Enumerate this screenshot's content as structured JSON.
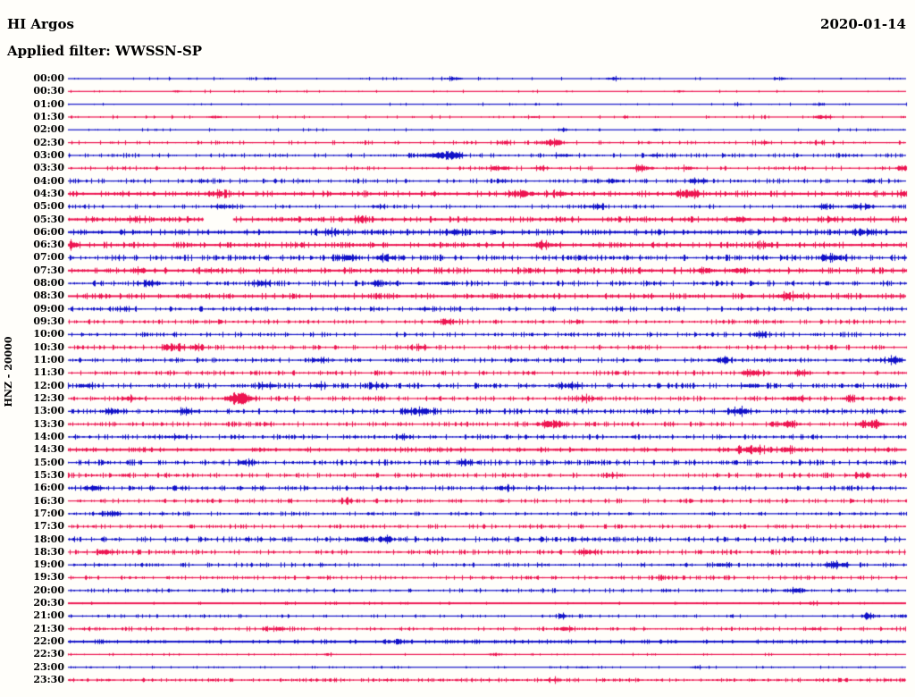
{
  "header": {
    "station": "HI Argos",
    "date": "2020-01-14",
    "filter": "Applied filter: WWSSN-SP"
  },
  "axis": {
    "channel_label": "HNZ - 20000"
  },
  "colors": {
    "trace_blue": "#1010c8",
    "trace_red": "#ed1450",
    "text": "#000000",
    "background": "#fffefa"
  },
  "chart_data": {
    "type": "line",
    "subtype": "helicorder-day-plot",
    "title": "HI Argos",
    "date_label": "2020-01-14",
    "filter_label": "Applied filter: WWSSN-SP",
    "ylabel": "HNZ - 20000",
    "minutes_per_row": 30,
    "row_count": 48,
    "legend": "alternating blue/red 30-minute traces, top=00:00 bottom=23:30",
    "rows": [
      {
        "t": "00:00",
        "n": 0.7,
        "d": 0.1,
        "ev": [
          [
            0.24,
            1.2,
            5
          ],
          [
            0.46,
            1.6,
            7
          ],
          [
            0.65,
            1.3,
            7
          ],
          [
            0.85,
            1.3,
            6
          ]
        ]
      },
      {
        "t": "00:30",
        "n": 0.6,
        "d": 0.08,
        "ev": [
          [
            0.13,
            1.2,
            4
          ],
          [
            0.73,
            1.2,
            4
          ]
        ]
      },
      {
        "t": "01:00",
        "n": 0.6,
        "d": 0.08,
        "ev": [
          [
            0.8,
            1.3,
            4
          ],
          [
            0.895,
            1.6,
            5
          ]
        ]
      },
      {
        "t": "01:30",
        "n": 0.7,
        "d": 0.1,
        "ev": [
          [
            0.175,
            1.5,
            5
          ],
          [
            0.555,
            1.2,
            4
          ],
          [
            0.9,
            2.2,
            7
          ]
        ]
      },
      {
        "t": "02:00",
        "n": 0.6,
        "d": 0.08,
        "ev": [
          [
            0.59,
            1.5,
            5
          ],
          [
            0.7,
            1.3,
            5
          ]
        ]
      },
      {
        "t": "02:30",
        "n": 0.8,
        "d": 0.22,
        "ev": [
          [
            0.52,
            1.5,
            6
          ],
          [
            0.577,
            3.5,
            10
          ],
          [
            0.83,
            1.5,
            6
          ],
          [
            0.896,
            1.5,
            5
          ]
        ]
      },
      {
        "t": "03:00",
        "n": 0.9,
        "d": 0.3,
        "ev": [
          [
            0.43,
            2,
            10
          ],
          [
            0.455,
            5,
            9
          ],
          [
            0.59,
            1.5,
            8
          ],
          [
            0.7,
            1.5,
            6
          ]
        ]
      },
      {
        "t": "03:30",
        "n": 0.85,
        "d": 0.26,
        "ev": [
          [
            0.515,
            2.8,
            8
          ],
          [
            0.565,
            2,
            6
          ],
          [
            0.685,
            3,
            9
          ],
          [
            0.74,
            2,
            6
          ],
          [
            0.995,
            3,
            5
          ]
        ]
      },
      {
        "t": "04:00",
        "n": 0.95,
        "d": 0.34,
        "ev": [
          [
            0.16,
            1.5,
            6
          ],
          [
            0.52,
            1.5,
            6
          ],
          [
            0.65,
            2,
            8
          ],
          [
            0.75,
            2.4,
            8
          ],
          [
            0.955,
            2,
            6
          ]
        ]
      },
      {
        "t": "04:30",
        "n": 1.25,
        "d": 0.5,
        "b": 1,
        "ev": [
          [
            0.18,
            2.4,
            8
          ],
          [
            0.54,
            3.4,
            10
          ],
          [
            0.585,
            2.4,
            8
          ],
          [
            0.74,
            3,
            9
          ],
          [
            0.998,
            2.4,
            5
          ]
        ]
      },
      {
        "t": "05:00",
        "n": 0.85,
        "d": 0.3,
        "ev": [
          [
            0.185,
            2,
            10
          ],
          [
            0.37,
            1.5,
            6
          ],
          [
            0.63,
            1.8,
            10
          ],
          [
            0.9,
            2.4,
            8
          ],
          [
            0.945,
            2.4,
            12
          ]
        ]
      },
      {
        "t": "05:30",
        "n": 1.2,
        "d": 0.5,
        "b": 1,
        "gap": [
          0.162,
          0.197
        ],
        "ev": [
          [
            0.08,
            2,
            8
          ],
          [
            0.35,
            2.4,
            8
          ],
          [
            0.8,
            3,
            8
          ],
          [
            0.91,
            2,
            6
          ]
        ]
      },
      {
        "t": "06:00",
        "n": 1.2,
        "d": 0.55,
        "b": 1,
        "ev": [
          [
            0.315,
            2.4,
            10
          ],
          [
            0.46,
            2,
            8
          ],
          [
            0.95,
            2.6,
            10
          ]
        ]
      },
      {
        "t": "06:30",
        "n": 1.2,
        "d": 0.5,
        "b": 1,
        "ev": [
          [
            0.005,
            3,
            5
          ],
          [
            0.565,
            3.4,
            9
          ],
          [
            0.83,
            2,
            6
          ]
        ]
      },
      {
        "t": "07:00",
        "n": 1.2,
        "d": 0.55,
        "ev": [
          [
            0.33,
            3,
            9
          ],
          [
            0.38,
            2.4,
            8
          ],
          [
            0.915,
            2.6,
            9
          ]
        ]
      },
      {
        "t": "07:30",
        "n": 1.3,
        "d": 0.55,
        "b": 1,
        "ev": [
          [
            0.085,
            2,
            6
          ],
          [
            0.17,
            2,
            6
          ],
          [
            0.76,
            2.4,
            8
          ],
          [
            0.8,
            2.4,
            8
          ]
        ]
      },
      {
        "t": "08:00",
        "n": 1.1,
        "d": 0.45,
        "ev": [
          [
            0.1,
            2,
            8
          ],
          [
            0.23,
            2.4,
            8
          ],
          [
            0.37,
            2,
            8
          ],
          [
            0.45,
            2,
            6
          ]
        ]
      },
      {
        "t": "08:30",
        "n": 1.2,
        "d": 0.5,
        "b": 1,
        "ev": [
          [
            0.86,
            3,
            10
          ]
        ]
      },
      {
        "t": "09:00",
        "n": 0.95,
        "d": 0.4,
        "ev": [
          [
            0.07,
            1.5,
            6
          ],
          [
            0.425,
            1.5,
            6
          ]
        ]
      },
      {
        "t": "09:30",
        "n": 0.9,
        "d": 0.36,
        "ev": [
          [
            0.45,
            2.8,
            9
          ]
        ]
      },
      {
        "t": "10:00",
        "n": 0.95,
        "d": 0.4,
        "ev": [
          [
            0.825,
            2,
            7
          ]
        ]
      },
      {
        "t": "10:30",
        "n": 0.95,
        "d": 0.4,
        "ev": [
          [
            0.125,
            3.2,
            9
          ],
          [
            0.155,
            2.4,
            6
          ],
          [
            0.42,
            2.2,
            7
          ]
        ]
      },
      {
        "t": "11:00",
        "n": 0.95,
        "d": 0.44,
        "ev": [
          [
            0.3,
            2,
            6
          ],
          [
            0.78,
            2.4,
            8
          ],
          [
            0.985,
            2.8,
            8
          ]
        ]
      },
      {
        "t": "11:30",
        "n": 1.0,
        "d": 0.45,
        "ev": [
          [
            0.815,
            3,
            9
          ],
          [
            0.875,
            2,
            6
          ]
        ]
      },
      {
        "t": "12:00",
        "n": 1.1,
        "d": 0.5,
        "ev": [
          [
            0.02,
            2.4,
            7
          ],
          [
            0.235,
            2.2,
            8
          ],
          [
            0.3,
            2,
            6
          ],
          [
            0.37,
            2.2,
            7
          ],
          [
            0.6,
            2.4,
            8
          ],
          [
            0.815,
            2.2,
            7
          ]
        ]
      },
      {
        "t": "12:30",
        "n": 1.0,
        "d": 0.45,
        "ev": [
          [
            0.075,
            2.2,
            6
          ],
          [
            0.205,
            5.5,
            10
          ],
          [
            0.62,
            2.4,
            8
          ],
          [
            0.87,
            2.4,
            8
          ],
          [
            0.935,
            2.2,
            6
          ]
        ]
      },
      {
        "t": "13:00",
        "n": 1.1,
        "d": 0.5,
        "ev": [
          [
            0.055,
            2.8,
            8
          ],
          [
            0.14,
            2.2,
            8
          ],
          [
            0.42,
            3.2,
            10
          ],
          [
            0.8,
            3,
            9
          ]
        ]
      },
      {
        "t": "13:30",
        "n": 1.0,
        "d": 0.45,
        "ev": [
          [
            0.575,
            3.8,
            10
          ],
          [
            0.86,
            3,
            9
          ],
          [
            0.958,
            3.6,
            10
          ]
        ]
      },
      {
        "t": "14:00",
        "n": 1.0,
        "d": 0.45,
        "ev": [
          [
            0.13,
            2,
            7
          ],
          [
            0.4,
            1.8,
            6
          ]
        ]
      },
      {
        "t": "14:30",
        "n": 1.05,
        "d": 0.5,
        "b": 1,
        "ev": [
          [
            0.815,
            3,
            14
          ],
          [
            0.86,
            2.4,
            8
          ]
        ]
      },
      {
        "t": "15:00",
        "n": 1.1,
        "d": 0.5,
        "ev": [
          [
            0.21,
            2,
            8
          ],
          [
            0.475,
            2,
            6
          ]
        ]
      },
      {
        "t": "15:30",
        "n": 1.0,
        "d": 0.45,
        "ev": [
          [
            0.65,
            2,
            7
          ],
          [
            0.945,
            2,
            7
          ]
        ]
      },
      {
        "t": "16:00",
        "n": 1.0,
        "d": 0.45,
        "ev": [
          [
            0.03,
            2.2,
            7
          ],
          [
            0.525,
            1.8,
            6
          ]
        ]
      },
      {
        "t": "16:30",
        "n": 0.85,
        "d": 0.38,
        "ev": [
          [
            0.33,
            1.8,
            6
          ]
        ]
      },
      {
        "t": "17:00",
        "n": 0.75,
        "d": 0.3,
        "ev": [
          [
            0.05,
            2.8,
            8
          ]
        ]
      },
      {
        "t": "17:30",
        "n": 0.85,
        "d": 0.38,
        "ev": []
      },
      {
        "t": "18:00",
        "n": 1.1,
        "d": 0.5,
        "ev": [
          [
            0.35,
            2,
            7
          ],
          [
            0.38,
            2,
            7
          ]
        ]
      },
      {
        "t": "18:30",
        "n": 1.0,
        "d": 0.45,
        "ev": [
          [
            0.045,
            2.4,
            8
          ],
          [
            0.62,
            2.2,
            7
          ]
        ]
      },
      {
        "t": "19:00",
        "n": 0.85,
        "d": 0.36,
        "ev": [
          [
            0.78,
            2,
            6
          ],
          [
            0.915,
            2.8,
            9
          ]
        ]
      },
      {
        "t": "19:30",
        "n": 0.85,
        "d": 0.38,
        "ev": [
          [
            0.71,
            2,
            6
          ]
        ]
      },
      {
        "t": "20:00",
        "n": 0.85,
        "d": 0.38,
        "ev": [
          [
            0.87,
            2.2,
            7
          ]
        ]
      },
      {
        "t": "20:30",
        "n": 0.55,
        "d": 0.15,
        "b": 1,
        "ev": [
          [
            0.26,
            1.3,
            5
          ],
          [
            0.4,
            1.3,
            5
          ],
          [
            0.89,
            1.3,
            5
          ]
        ]
      },
      {
        "t": "21:00",
        "n": 0.65,
        "d": 0.24,
        "ev": [
          [
            0.59,
            2,
            6
          ],
          [
            0.955,
            2.2,
            7
          ],
          [
            0.995,
            2,
            5
          ]
        ]
      },
      {
        "t": "21:30",
        "n": 0.85,
        "d": 0.38,
        "ev": [
          [
            0.245,
            2.2,
            8
          ],
          [
            0.594,
            2.2,
            7
          ],
          [
            0.89,
            1.8,
            6
          ]
        ]
      },
      {
        "t": "22:00",
        "n": 0.85,
        "d": 0.42,
        "b": 1,
        "ev": [
          [
            0.395,
            1.8,
            6
          ]
        ]
      },
      {
        "t": "22:30",
        "n": 0.5,
        "d": 0.1,
        "ev": [
          [
            0.31,
            1.4,
            5
          ],
          [
            0.51,
            1.8,
            6
          ]
        ]
      },
      {
        "t": "23:00",
        "n": 0.5,
        "d": 0.14,
        "ev": [
          [
            0.615,
            1.4,
            6
          ],
          [
            0.75,
            1.4,
            5
          ]
        ]
      },
      {
        "t": "23:30",
        "n": 0.75,
        "d": 0.45,
        "ev": [
          [
            0.58,
            1.8,
            6
          ]
        ]
      }
    ]
  }
}
